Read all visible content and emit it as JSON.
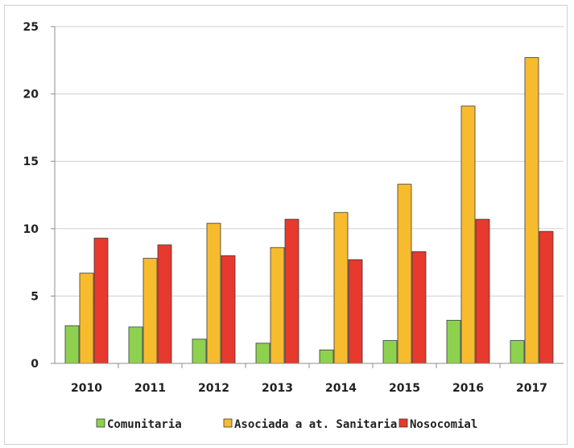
{
  "chart_data": {
    "type": "bar",
    "categories": [
      "2010",
      "2011",
      "2012",
      "2013",
      "2014",
      "2015",
      "2016",
      "2017"
    ],
    "series": [
      {
        "name": "Comunitaria",
        "color": "#8ed14f",
        "values": [
          2.8,
          2.7,
          1.8,
          1.5,
          1.0,
          1.7,
          3.2,
          1.7
        ]
      },
      {
        "name": "Asociada a at. Sanitaria",
        "color": "#f7bb2e",
        "values": [
          6.7,
          7.8,
          10.4,
          8.6,
          11.2,
          13.3,
          19.1,
          22.7
        ]
      },
      {
        "name": "Nosocomial",
        "color": "#e8392e",
        "values": [
          9.3,
          8.8,
          8.0,
          10.7,
          7.7,
          8.3,
          10.7,
          9.8
        ]
      }
    ],
    "yticks": [
      "0",
      "5",
      "10",
      "15",
      "20",
      "25"
    ],
    "ylim": [
      0,
      25
    ],
    "grid": true,
    "legend_position": "bottom",
    "title": "",
    "xlabel": "",
    "ylabel": ""
  }
}
